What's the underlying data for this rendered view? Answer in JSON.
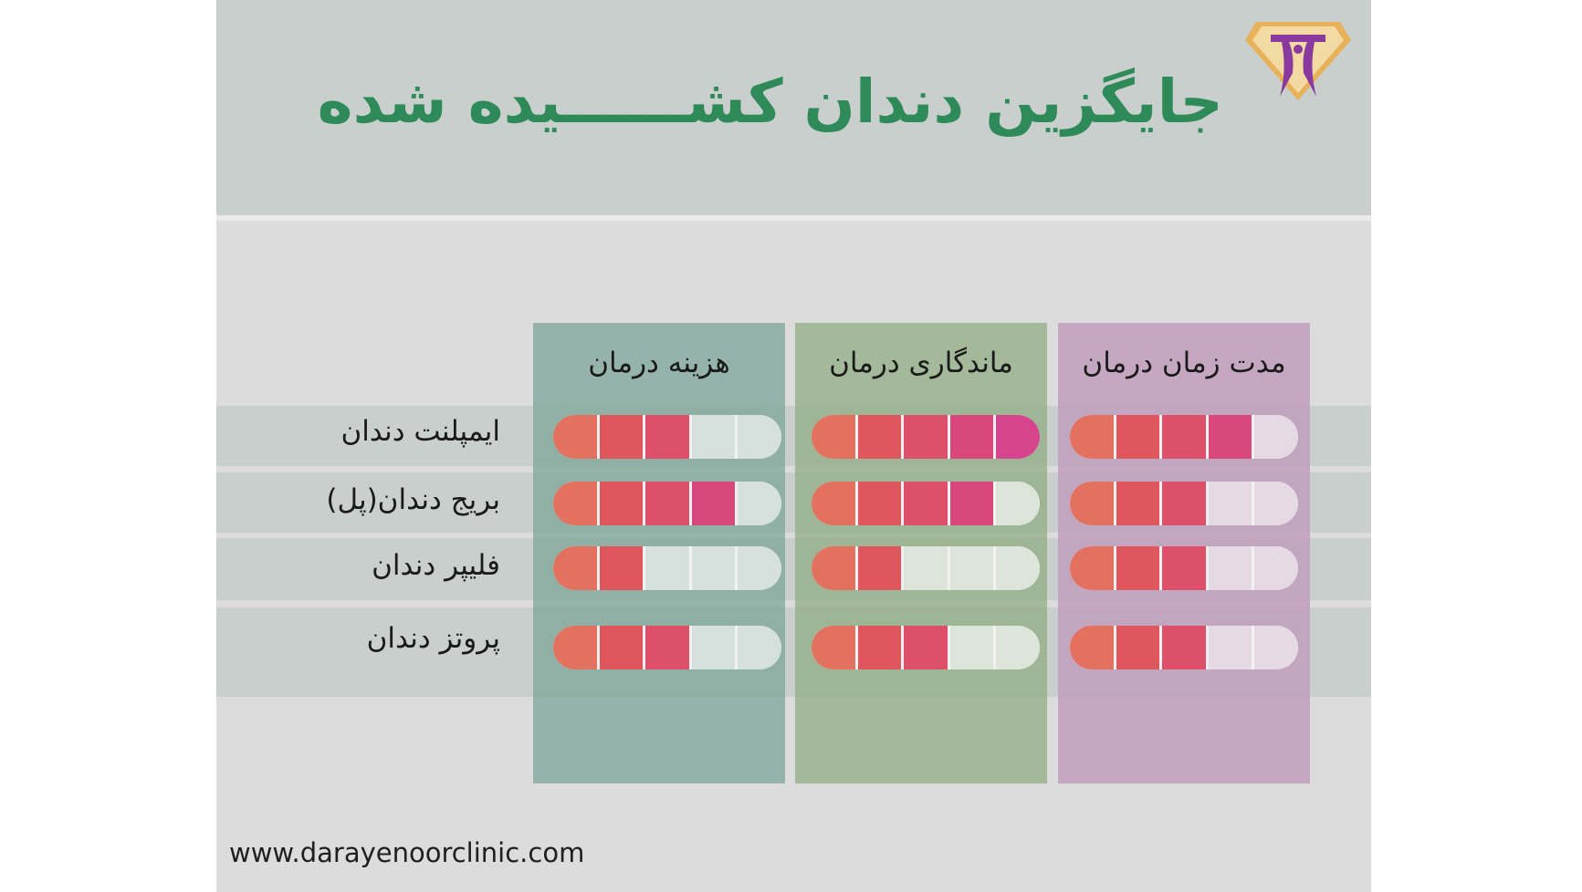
{
  "title": "جایگزین دندان کشــــــیده شده",
  "website": "www.darayenoorclinic.com",
  "colors": {
    "title": "#2f8a5a",
    "header_bg": "#c9cfcd",
    "card_bg": "#dcdcdc",
    "row_band": "#c8cfcd",
    "panel_cost": "#90b0a6",
    "panel_durability": "#9db494",
    "panel_duration": "#c5a6c0",
    "empty_cost": "#d6e0dc",
    "empty_durability": "#dde4d9",
    "empty_duration": "#e5d9e4",
    "filled_ramp": [
      "#e3715f",
      "#e0565d",
      "#de4f69",
      "#d9487a",
      "#d6458e"
    ]
  },
  "chart_data": {
    "type": "table",
    "scale_max": 5,
    "columns": [
      "هزینه درمان",
      "ماندگاری درمان",
      "مدت زمان درمان"
    ],
    "rows": [
      "ایمپلنت دندان",
      "بریج دندان(پل)",
      "فلیپر دندان",
      "پروتز دندان"
    ],
    "values": [
      [
        3,
        5,
        4
      ],
      [
        4,
        4,
        3
      ],
      [
        2,
        2,
        3
      ],
      [
        3,
        3,
        3
      ]
    ]
  }
}
